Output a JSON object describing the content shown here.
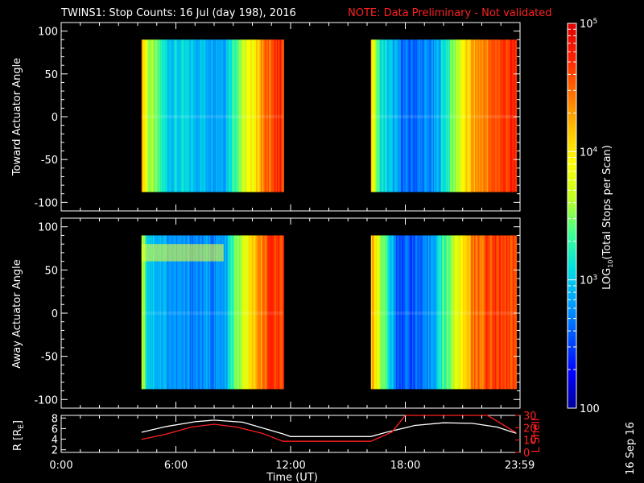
{
  "title": "TWINS1: Stop Counts: 16 Jul (day 198), 2016",
  "note": "NOTE: Data Preliminary - Not validated",
  "stamp": "16 Sep 16",
  "colorbar": {
    "label": "LOG10(Total Stops per Scan)",
    "label_prefix": "LOG",
    "label_sub": "10",
    "label_suffix": "(Total Stops per Scan)",
    "ticks": [
      {
        "value": 100,
        "base": "100",
        "exp": ""
      },
      {
        "value": 1000,
        "base": "10",
        "exp": "3"
      },
      {
        "value": 10000,
        "base": "10",
        "exp": "4"
      },
      {
        "value": 100000,
        "base": "10",
        "exp": "5"
      }
    ],
    "colors": [
      "#00009a",
      "#0000ff",
      "#0050ff",
      "#00a0ff",
      "#00e0e0",
      "#40ff90",
      "#c0ff20",
      "#ffff00",
      "#ffc000",
      "#ff7000",
      "#ff2000",
      "#e00000"
    ]
  },
  "x_axis": {
    "label": "Time (UT)",
    "range": [
      0,
      24
    ],
    "ticks": [
      {
        "value": 0,
        "label": "0:00"
      },
      {
        "value": 6,
        "label": "6:00"
      },
      {
        "value": 12,
        "label": "12:00"
      },
      {
        "value": 18,
        "label": "18:00"
      },
      {
        "value": 23.983,
        "label": "23:59"
      }
    ]
  },
  "chart_data": [
    {
      "type": "heatmap",
      "ylabel": "Toward Actuator Angle",
      "ylim": [
        -110,
        110
      ],
      "yticks": [
        100,
        50,
        0,
        -50,
        -100
      ],
      "angle_range": [
        -88,
        90
      ],
      "data_intervals": [
        [
          4.2,
          11.6
        ],
        [
          16.2,
          23.8
        ]
      ],
      "time_profile": [
        {
          "t": 4.2,
          "level": 0.75
        },
        {
          "t": 4.5,
          "level": 0.55
        },
        {
          "t": 5.5,
          "level": 0.35
        },
        {
          "t": 8.5,
          "level": 0.3
        },
        {
          "t": 9.0,
          "level": 0.45
        },
        {
          "t": 10.0,
          "level": 0.65
        },
        {
          "t": 10.8,
          "level": 0.85
        },
        {
          "t": 11.6,
          "level": 0.9
        },
        {
          "t": 16.2,
          "level": 0.7
        },
        {
          "t": 16.6,
          "level": 0.4
        },
        {
          "t": 18.0,
          "level": 0.2
        },
        {
          "t": 19.5,
          "level": 0.25
        },
        {
          "t": 20.5,
          "level": 0.5
        },
        {
          "t": 21.5,
          "level": 0.75
        },
        {
          "t": 23.0,
          "level": 0.88
        },
        {
          "t": 23.8,
          "level": 0.9
        }
      ]
    },
    {
      "type": "heatmap",
      "ylabel": "Away Actuator Angle",
      "ylim": [
        -110,
        110
      ],
      "yticks": [
        100,
        50,
        0,
        -50,
        -100
      ],
      "angle_range": [
        -88,
        90
      ],
      "data_intervals": [
        [
          4.2,
          11.6
        ],
        [
          16.2,
          23.8
        ]
      ],
      "high_band": {
        "angle_range": [
          60,
          80
        ],
        "time_range": [
          4.2,
          8.5
        ]
      },
      "time_profile": [
        {
          "t": 4.2,
          "level": 0.6
        },
        {
          "t": 4.5,
          "level": 0.35
        },
        {
          "t": 6.0,
          "level": 0.25
        },
        {
          "t": 8.5,
          "level": 0.25
        },
        {
          "t": 9.0,
          "level": 0.45
        },
        {
          "t": 10.0,
          "level": 0.7
        },
        {
          "t": 11.0,
          "level": 0.88
        },
        {
          "t": 11.6,
          "level": 0.9
        },
        {
          "t": 16.2,
          "level": 0.75
        },
        {
          "t": 16.8,
          "level": 0.5
        },
        {
          "t": 17.5,
          "level": 0.2
        },
        {
          "t": 19.0,
          "level": 0.2
        },
        {
          "t": 20.5,
          "level": 0.55
        },
        {
          "t": 21.5,
          "level": 0.8
        },
        {
          "t": 23.0,
          "level": 0.9
        },
        {
          "t": 23.8,
          "level": 0.85
        }
      ]
    },
    {
      "type": "line",
      "ylabel_left": "R [RE]",
      "ylabel_left_base": "R [R",
      "ylabel_left_sub": "E",
      "ylabel_left_suffix": "]",
      "ylabel_right": "L Shell",
      "ylim_left": [
        1.5,
        8.5
      ],
      "yticks_left": [
        8,
        6,
        4,
        2
      ],
      "ylim_right": [
        0,
        30
      ],
      "yticks_right": [
        30,
        20,
        10,
        0
      ],
      "series": [
        {
          "name": "R",
          "color": "#ffffff",
          "axis": "left",
          "points": [
            [
              4.2,
              5.3
            ],
            [
              5.5,
              6.4
            ],
            [
              7.0,
              7.3
            ],
            [
              8.0,
              7.6
            ],
            [
              9.5,
              7.2
            ],
            [
              11.6,
              5.0
            ],
            [
              12.0,
              4.5
            ],
            [
              16.2,
              4.5
            ],
            [
              17.0,
              5.3
            ],
            [
              18.5,
              6.6
            ],
            [
              20.0,
              7.1
            ],
            [
              21.5,
              7.0
            ],
            [
              22.8,
              6.3
            ],
            [
              23.8,
              5.1
            ]
          ]
        },
        {
          "name": "L Shell",
          "color": "#ff2020",
          "axis": "right",
          "points": [
            [
              4.2,
              10.5
            ],
            [
              5.5,
              14.8
            ],
            [
              6.8,
              20.5
            ],
            [
              8.0,
              22.8
            ],
            [
              9.2,
              20.5
            ],
            [
              10.5,
              15.5
            ],
            [
              11.6,
              9.0
            ],
            [
              16.2,
              9.0
            ],
            [
              17.3,
              16.5
            ],
            [
              18.0,
              30.0
            ],
            [
              22.3,
              30.0
            ],
            [
              23.8,
              16.0
            ]
          ]
        }
      ]
    }
  ]
}
